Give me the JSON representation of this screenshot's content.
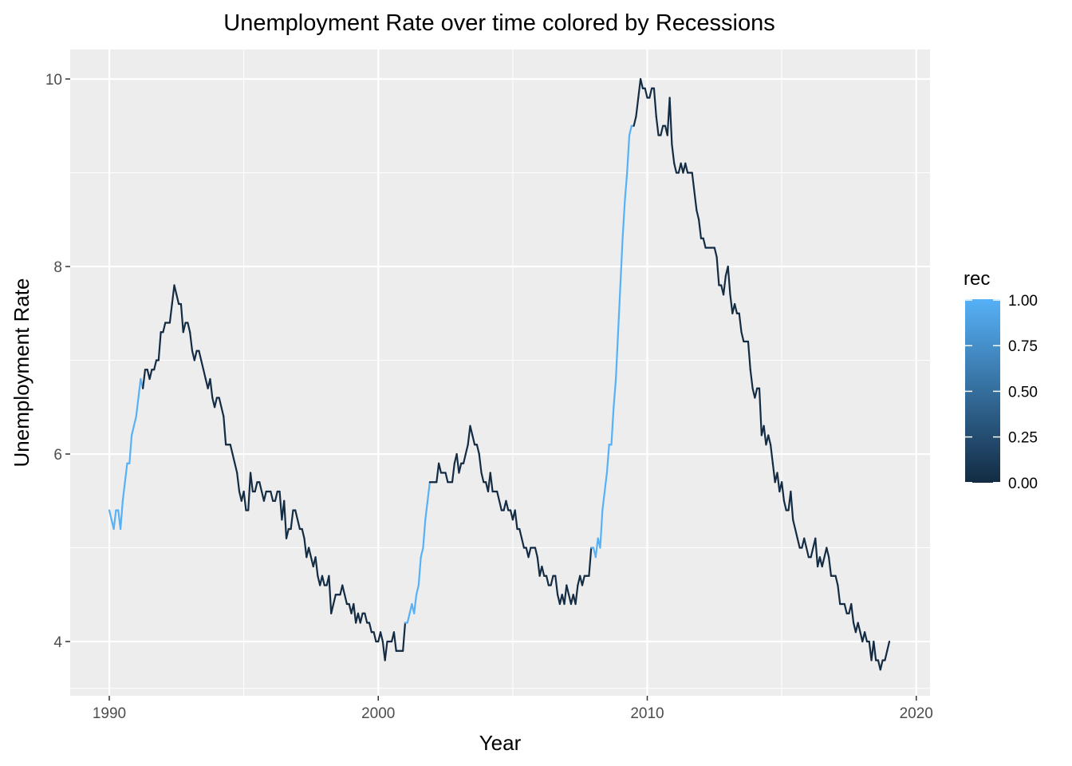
{
  "chart_data": {
    "type": "line",
    "title": "Unemployment Rate over time colored by Recessions",
    "xlabel": "Year",
    "ylabel": "Unemployment Rate",
    "x_ticks": [
      1990,
      2000,
      2010,
      2020
    ],
    "y_ticks": [
      4,
      6,
      8,
      10
    ],
    "xlim": [
      1988.5,
      2020.5
    ],
    "ylim": [
      3.45,
      10.32
    ],
    "grid": true,
    "legend": {
      "title": "rec",
      "position": "right",
      "type": "colorbar",
      "labels": [
        "1.00",
        "0.75",
        "0.50",
        "0.25",
        "0.00"
      ],
      "low_color": "#132B43",
      "high_color": "#56B1F7"
    },
    "start_year": 1990,
    "frequency": "monthly",
    "values": [
      5.4,
      5.3,
      5.2,
      5.4,
      5.4,
      5.2,
      5.5,
      5.7,
      5.9,
      5.9,
      6.2,
      6.3,
      6.4,
      6.6,
      6.8,
      6.7,
      6.9,
      6.9,
      6.8,
      6.9,
      6.9,
      7.0,
      7.0,
      7.3,
      7.3,
      7.4,
      7.4,
      7.4,
      7.6,
      7.8,
      7.7,
      7.6,
      7.6,
      7.3,
      7.4,
      7.4,
      7.3,
      7.1,
      7.0,
      7.1,
      7.1,
      7.0,
      6.9,
      6.8,
      6.7,
      6.8,
      6.6,
      6.5,
      6.6,
      6.6,
      6.5,
      6.4,
      6.1,
      6.1,
      6.1,
      6.0,
      5.9,
      5.8,
      5.6,
      5.5,
      5.6,
      5.4,
      5.4,
      5.8,
      5.6,
      5.6,
      5.7,
      5.7,
      5.6,
      5.5,
      5.6,
      5.6,
      5.6,
      5.5,
      5.5,
      5.6,
      5.6,
      5.3,
      5.5,
      5.1,
      5.2,
      5.2,
      5.4,
      5.4,
      5.3,
      5.2,
      5.2,
      5.1,
      4.9,
      5.0,
      4.9,
      4.8,
      4.9,
      4.7,
      4.6,
      4.7,
      4.6,
      4.6,
      4.7,
      4.3,
      4.4,
      4.5,
      4.5,
      4.5,
      4.6,
      4.5,
      4.4,
      4.4,
      4.3,
      4.4,
      4.2,
      4.3,
      4.2,
      4.3,
      4.3,
      4.2,
      4.2,
      4.1,
      4.1,
      4.0,
      4.0,
      4.1,
      4.0,
      3.8,
      4.0,
      4.0,
      4.0,
      4.1,
      3.9,
      3.9,
      3.9,
      3.9,
      4.2,
      4.2,
      4.3,
      4.4,
      4.3,
      4.5,
      4.6,
      4.9,
      5.0,
      5.3,
      5.5,
      5.7,
      5.7,
      5.7,
      5.7,
      5.9,
      5.8,
      5.8,
      5.8,
      5.7,
      5.7,
      5.7,
      5.9,
      6.0,
      5.8,
      5.9,
      5.9,
      6.0,
      6.1,
      6.3,
      6.2,
      6.1,
      6.1,
      6.0,
      5.8,
      5.7,
      5.7,
      5.6,
      5.8,
      5.6,
      5.6,
      5.6,
      5.5,
      5.4,
      5.4,
      5.5,
      5.4,
      5.4,
      5.3,
      5.4,
      5.2,
      5.2,
      5.1,
      5.0,
      5.0,
      4.9,
      5.0,
      5.0,
      5.0,
      4.9,
      4.7,
      4.8,
      4.7,
      4.7,
      4.6,
      4.6,
      4.7,
      4.7,
      4.5,
      4.4,
      4.5,
      4.4,
      4.6,
      4.5,
      4.4,
      4.5,
      4.4,
      4.6,
      4.7,
      4.6,
      4.7,
      4.7,
      4.7,
      5.0,
      5.0,
      4.9,
      5.1,
      5.0,
      5.4,
      5.6,
      5.8,
      6.1,
      6.1,
      6.5,
      6.8,
      7.3,
      7.8,
      8.3,
      8.7,
      9.0,
      9.4,
      9.5,
      9.5,
      9.6,
      9.8,
      10.0,
      9.9,
      9.9,
      9.8,
      9.8,
      9.9,
      9.9,
      9.6,
      9.4,
      9.4,
      9.5,
      9.5,
      9.4,
      9.8,
      9.3,
      9.1,
      9.0,
      9.0,
      9.1,
      9.0,
      9.1,
      9.0,
      9.0,
      9.0,
      8.8,
      8.6,
      8.5,
      8.3,
      8.3,
      8.2,
      8.2,
      8.2,
      8.2,
      8.2,
      8.1,
      7.8,
      7.8,
      7.7,
      7.9,
      8.0,
      7.7,
      7.5,
      7.6,
      7.5,
      7.5,
      7.3,
      7.2,
      7.2,
      7.2,
      6.9,
      6.7,
      6.6,
      6.7,
      6.7,
      6.2,
      6.3,
      6.1,
      6.2,
      6.1,
      5.9,
      5.7,
      5.8,
      5.6,
      5.7,
      5.5,
      5.4,
      5.4,
      5.6,
      5.3,
      5.2,
      5.1,
      5.0,
      5.0,
      5.1,
      5.0,
      4.9,
      4.9,
      5.0,
      5.1,
      4.8,
      4.9,
      4.8,
      4.9,
      5.0,
      4.9,
      4.7,
      4.7,
      4.7,
      4.6,
      4.4,
      4.4,
      4.4,
      4.3,
      4.3,
      4.4,
      4.2,
      4.1,
      4.2,
      4.1,
      4.0,
      4.1,
      4.0,
      4.0,
      3.8,
      4.0,
      3.8,
      3.8,
      3.7,
      3.8,
      3.8,
      3.9,
      4.0
    ],
    "rec_periods": [
      {
        "start": "1990-01",
        "end": "1991-03",
        "rec": 1
      },
      {
        "start": "2001-01",
        "end": "2001-11",
        "rec": 1
      },
      {
        "start": "2007-12",
        "end": "2009-06",
        "rec": 1
      }
    ]
  }
}
